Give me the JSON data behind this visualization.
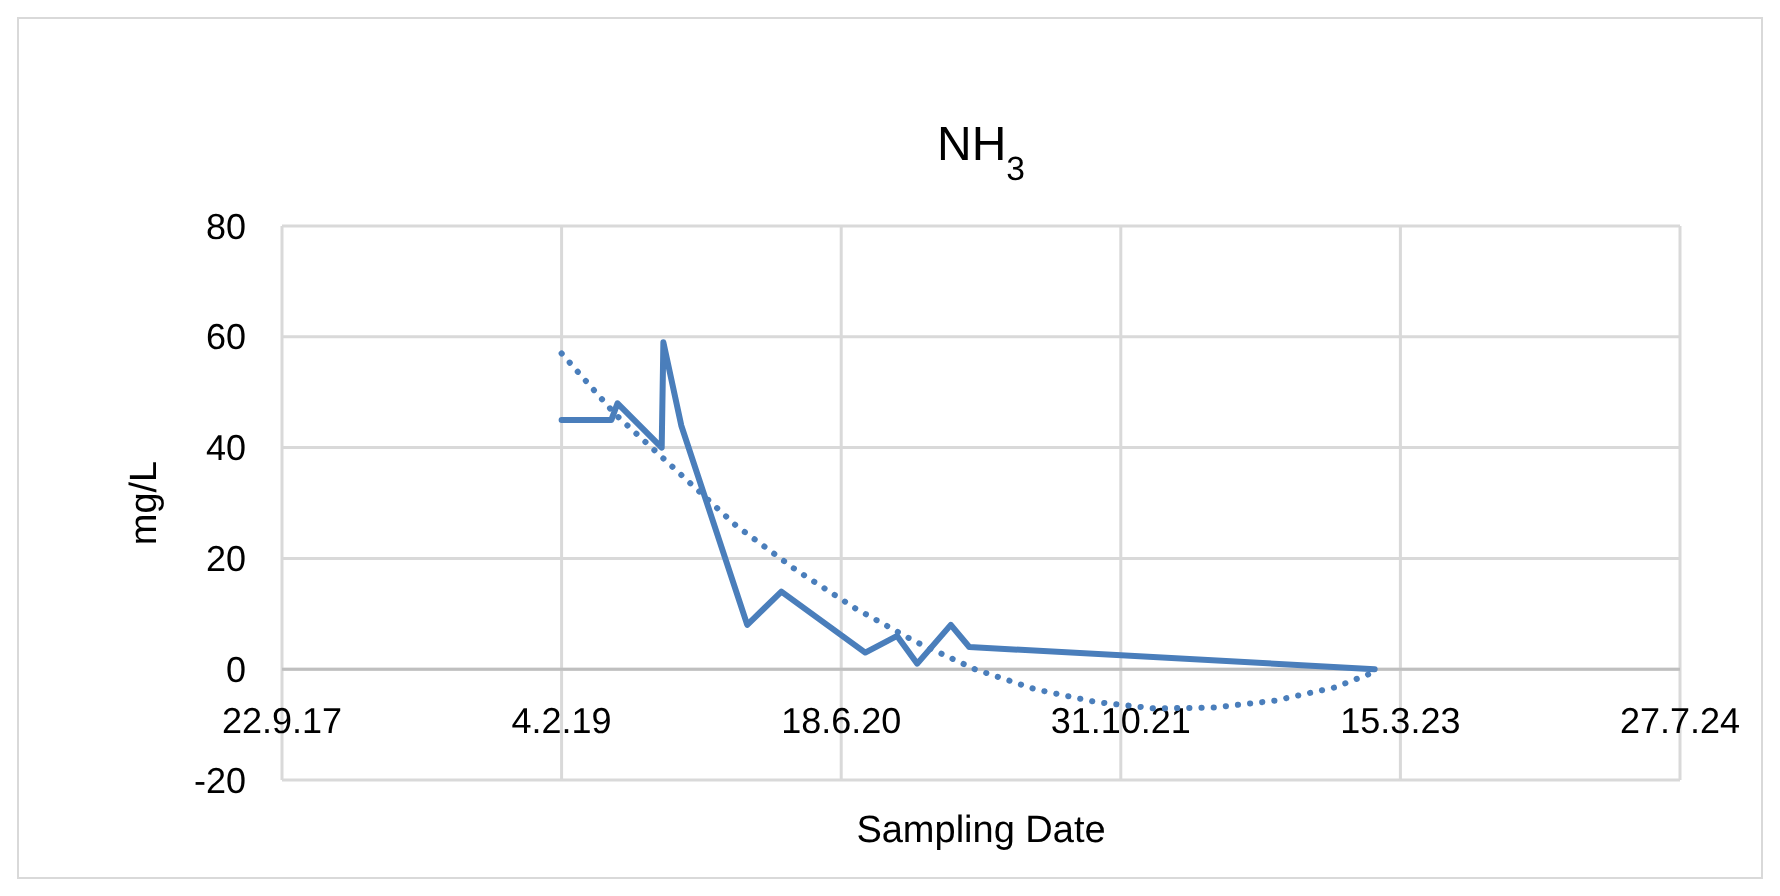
{
  "chart_data": {
    "type": "line",
    "title": "NH$_{3}$",
    "xlabel": "Sampling Date",
    "ylabel": "mg/L",
    "xlim": [
      "2017-09-22",
      "2024-07-27"
    ],
    "xticks": [
      {
        "value": "2017-09-22",
        "label": "22.9.17"
      },
      {
        "value": "2019-02-04",
        "label": "4.2.19"
      },
      {
        "value": "2020-06-18",
        "label": "18.6.20"
      },
      {
        "value": "2021-10-31",
        "label": "31.10.21"
      },
      {
        "value": "2023-03-15",
        "label": "15.3.23"
      },
      {
        "value": "2024-07-27",
        "label": "27.7.24"
      }
    ],
    "ylim": [
      -20,
      80
    ],
    "yticks": [
      -20,
      0,
      20,
      40,
      60,
      80
    ],
    "grid": true,
    "marker": "none",
    "series": [
      {
        "color": "#4a7ebb",
        "line_style": "solid",
        "x": [
          "2019-02-04",
          "2019-05-04",
          "2019-05-15",
          "2019-08-02",
          "2019-08-05",
          "2019-09-06",
          "2020-01-02",
          "2020-03-03",
          "2020-07-31",
          "2020-09-26",
          "2020-11-01",
          "2020-12-31",
          "2021-02-02",
          "2023-01-28"
        ],
        "values": [
          45,
          45,
          48,
          40,
          59,
          44,
          8,
          14,
          3,
          6,
          1,
          8,
          4,
          0
        ]
      },
      {
        "color": "#4a7ebb",
        "line_style": "dotted",
        "x": [
          "2019-02-04",
          "2019-05-11",
          "2019-08-27",
          "2019-12-12",
          "2020-03-28",
          "2020-07-13",
          "2020-10-28",
          "2021-02-12",
          "2021-05-30",
          "2021-09-15",
          "2021-12-31",
          "2022-04-17",
          "2022-08-02",
          "2022-11-17",
          "2023-01-28"
        ],
        "values": [
          57,
          46,
          36,
          26,
          18,
          11,
          5,
          0,
          -3.6,
          -5.9,
          -7.1,
          -6.9,
          -5.7,
          -3.3,
          -0.5
        ]
      }
    ]
  }
}
